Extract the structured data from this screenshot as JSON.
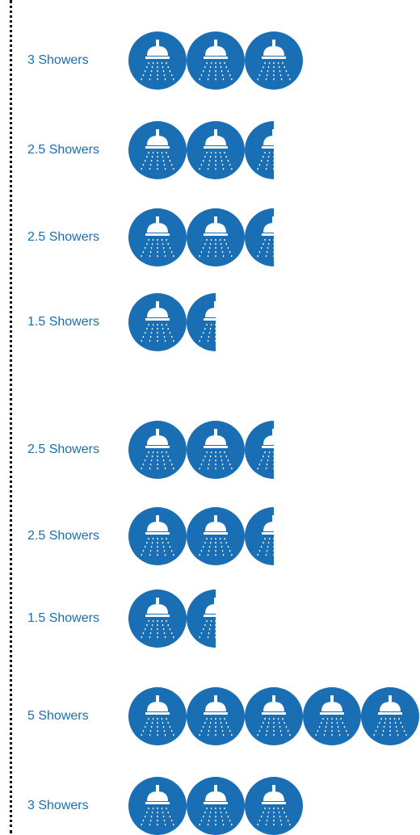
{
  "colors": {
    "icon_fill": "#1a6eb4",
    "label_text": "#1a6eb4",
    "icon_glyph": "#ffffff"
  },
  "chart_data": {
    "type": "table",
    "unit_icon": "shower-icon",
    "rows": [
      {
        "label": "3 Showers",
        "value": 3
      },
      {
        "label": "2.5 Showers",
        "value": 2.5
      },
      {
        "label": "2.5 Showers",
        "value": 2.5
      },
      {
        "label": "1.5 Showers",
        "value": 1.5
      },
      {
        "label": "2.5 Showers",
        "value": 2.5
      },
      {
        "label": "2.5 Showers",
        "value": 2.5
      },
      {
        "label": "1.5 Showers",
        "value": 1.5
      },
      {
        "label": "5 Showers",
        "value": 5
      },
      {
        "label": "3 Showers",
        "value": 3
      }
    ]
  }
}
